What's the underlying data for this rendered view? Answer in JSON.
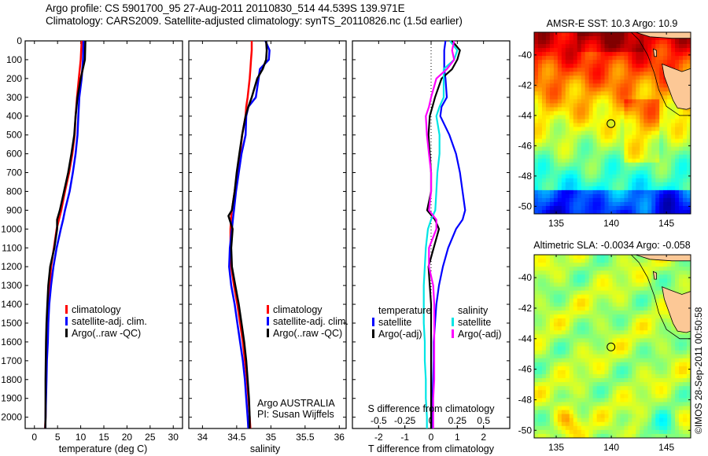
{
  "header": {
    "line1": "Argo profile: CS 5901700_95 27-Aug-2011 20110830_514 44.539S 139.971E",
    "line2": "Climatology: CARS2009. Satellite-adjusted climatology: synTS_20110826.nc (1.5d earlier)"
  },
  "colors": {
    "climatology": "#ff0000",
    "satellite": "#0000ff",
    "argo": "#000000",
    "sal_satellite": "#00e5e5",
    "sal_argo": "#ff00ff",
    "land": "#fcc896"
  },
  "chart_data": [
    {
      "type": "line",
      "name": "temperature-profile",
      "xlabel": "temperature (deg C)",
      "ylabel": "",
      "xlim": [
        -2,
        32
      ],
      "ylim": [
        2060,
        0
      ],
      "xticks": [
        0,
        5,
        10,
        15,
        20,
        25,
        30
      ],
      "yticks": [
        0,
        100,
        200,
        300,
        400,
        500,
        600,
        700,
        800,
        900,
        1000,
        1100,
        1200,
        1300,
        1400,
        1500,
        1600,
        1700,
        1800,
        1900,
        2000
      ],
      "depth": [
        0,
        100,
        200,
        300,
        400,
        500,
        600,
        700,
        800,
        900,
        950,
        1000,
        1100,
        1200,
        1300,
        1400,
        1500,
        1600,
        1700,
        1800,
        1900,
        2000,
        2060
      ],
      "series": [
        {
          "name": "climatology",
          "values": [
            10.2,
            10.0,
            9.6,
            9.2,
            8.9,
            8.7,
            8.2,
            7.5,
            6.6,
            5.8,
            5.3,
            4.8,
            4.2,
            3.6,
            3.3,
            3.0,
            2.8,
            2.7,
            2.6,
            2.5,
            2.45,
            2.4,
            2.3
          ]
        },
        {
          "name": "satellite-adj. clim.",
          "values": [
            10.6,
            10.5,
            10.2,
            9.7,
            9.5,
            9.3,
            8.9,
            8.3,
            7.6,
            6.6,
            6.2,
            5.7,
            4.8,
            4.1,
            3.6,
            3.2,
            3.0,
            2.9,
            2.7,
            2.6,
            2.5,
            2.4,
            2.35
          ]
        },
        {
          "name": "Argo(..raw -QC)",
          "values": [
            11.0,
            10.9,
            10.0,
            9.3,
            8.9,
            8.6,
            8.0,
            7.3,
            6.4,
            5.5,
            4.9,
            4.9,
            4.3,
            3.4,
            3.0,
            2.8,
            2.6,
            2.5,
            2.45,
            2.4,
            2.4,
            2.4,
            2.35
          ]
        }
      ],
      "legend": [
        "climatology",
        "satellite-adj. clim.",
        "Argo(..raw -QC)"
      ],
      "legend_position": "center-bottom"
    },
    {
      "type": "line",
      "name": "salinity-profile",
      "xlabel": "salinity",
      "xlim": [
        33.8,
        36.1
      ],
      "ylim": [
        2060,
        0
      ],
      "xticks": [
        34,
        34.5,
        35,
        35.5,
        36
      ],
      "xtick_labels": [
        "34",
        "34.5",
        "35",
        "35.5",
        "36"
      ],
      "depth": [
        0,
        50,
        100,
        150,
        200,
        300,
        350,
        400,
        500,
        600,
        700,
        800,
        900,
        930,
        1000,
        1100,
        1200,
        1300,
        1400,
        1500,
        1600,
        1700,
        1800,
        1900,
        2000,
        2060
      ],
      "series": [
        {
          "name": "climatology",
          "values": [
            34.72,
            34.72,
            34.71,
            34.7,
            34.69,
            34.66,
            34.64,
            34.63,
            34.58,
            34.55,
            34.51,
            34.47,
            34.43,
            34.42,
            34.41,
            34.41,
            34.42,
            34.46,
            34.51,
            34.55,
            34.59,
            34.62,
            34.65,
            34.67,
            34.69,
            34.7
          ]
        },
        {
          "name": "satellite-adj. clim.",
          "values": [
            34.92,
            34.98,
            34.97,
            34.84,
            34.82,
            34.78,
            34.67,
            34.64,
            34.63,
            34.57,
            34.53,
            34.49,
            34.46,
            34.45,
            34.43,
            34.4,
            34.39,
            34.42,
            34.47,
            34.51,
            34.55,
            34.59,
            34.62,
            34.64,
            34.66,
            34.67
          ]
        },
        {
          "name": "Argo(..raw -QC)",
          "values": [
            34.93,
            34.94,
            34.93,
            34.88,
            34.8,
            34.72,
            34.67,
            34.63,
            34.58,
            34.54,
            34.5,
            34.47,
            34.43,
            34.38,
            34.44,
            34.42,
            34.43,
            34.48,
            34.53,
            34.57,
            34.61,
            34.64,
            34.66,
            34.68,
            34.69,
            34.69
          ]
        }
      ],
      "legend": [
        "climatology",
        "satellite-adj. clim.",
        "Argo(..raw -QC)"
      ],
      "legend_position": "center-bottom",
      "annotation": [
        "Argo AUSTRALIA",
        "PI: Susan Wijffels"
      ]
    },
    {
      "type": "line",
      "name": "difference-profile",
      "xlabel": "T difference from climatology",
      "xlabel_top": "S difference from climatology",
      "xlim": [
        -3,
        3
      ],
      "ylim": [
        2060,
        0
      ],
      "xticks": [
        -2,
        -1,
        0,
        1,
        2
      ],
      "secondary_xticks": [
        -0.5,
        -0.25,
        0,
        0.25,
        0.5
      ],
      "secondary_xtick_labels": [
        "-0.5",
        "-0.25",
        "0",
        "0.25",
        "0.5"
      ],
      "zero_line": "dotted",
      "depth": [
        0,
        50,
        100,
        150,
        200,
        300,
        350,
        400,
        500,
        600,
        700,
        800,
        900,
        950,
        1000,
        1100,
        1200,
        1300,
        1400,
        1500,
        1600,
        1700,
        1800,
        1900,
        2000,
        2060
      ],
      "series": [
        {
          "name": "temperature satellite",
          "group": "temperature",
          "values": [
            0.55,
            0.5,
            0.5,
            0.5,
            0.55,
            0.6,
            0.4,
            0.35,
            0.7,
            0.95,
            1.1,
            1.2,
            1.3,
            1.2,
            0.95,
            0.65,
            0.45,
            0.3,
            0.2,
            0.15,
            0.1,
            0.1,
            0.08,
            0.05,
            0.05,
            0.05
          ]
        },
        {
          "name": "temperature Argo(-adj)",
          "group": "temperature",
          "values": [
            0.8,
            1.1,
            1.0,
            0.8,
            0.4,
            0.15,
            0.05,
            -0.05,
            -0.1,
            -0.05,
            0.0,
            0.0,
            -0.15,
            0.15,
            0.3,
            0.1,
            -0.1,
            -0.05,
            0.0,
            0.0,
            0.0,
            0.0,
            0.0,
            0.0,
            0.0,
            0.0
          ]
        },
        {
          "name": "salinity satellite",
          "group": "salinity",
          "values": [
            0.18,
            0.25,
            0.22,
            0.12,
            0.12,
            0.12,
            0.08,
            0.05,
            0.08,
            0.08,
            0.06,
            0.05,
            0.04,
            0.0,
            -0.03,
            -0.05,
            -0.06,
            -0.07,
            -0.07,
            -0.07,
            -0.06,
            -0.06,
            -0.05,
            -0.05,
            -0.04,
            -0.04
          ]
        },
        {
          "name": "salinity Argo(-adj)",
          "group": "salinity",
          "values": [
            0.22,
            0.2,
            0.22,
            0.15,
            0.05,
            0.0,
            -0.02,
            -0.05,
            -0.04,
            -0.02,
            0.0,
            0.0,
            -0.02,
            0.05,
            0.05,
            -0.02,
            -0.02,
            0.02,
            0.03,
            0.03,
            0.03,
            0.03,
            0.03,
            0.02,
            0.02,
            0.02
          ]
        }
      ],
      "legend": {
        "temperature_header": "temperature",
        "salinity_header": "salinity",
        "temperature": [
          "satellite",
          "Argo(-adj)"
        ],
        "salinity": [
          "satellite",
          "Argo(-adj)"
        ]
      }
    },
    {
      "type": "heatmap",
      "name": "sst-map",
      "title": "AMSR-E SST: 10.3 Argo: 10.9",
      "xlim": [
        133,
        147.2
      ],
      "ylim": [
        -50.5,
        -38.5
      ],
      "xticks": [
        135,
        140,
        145
      ],
      "yticks": [
        -40,
        -42,
        -44,
        -46,
        -48,
        -50
      ],
      "float_position": {
        "lon": 139.971,
        "lat": -44.539
      },
      "colormap": "jet",
      "description": "Warm (orange/red) to north, green mid, blue to south; Tasmania land in top-right"
    },
    {
      "type": "heatmap",
      "name": "sla-map",
      "title": "Altimetric SLA: -0.0034 Argo: -0.058",
      "xlim": [
        133,
        147.2
      ],
      "ylim": [
        -50.5,
        -38.5
      ],
      "xticks": [
        135,
        140,
        145
      ],
      "yticks": [
        -40,
        -42,
        -44,
        -46,
        -48,
        -50
      ],
      "float_position": {
        "lon": 139.971,
        "lat": -44.539
      },
      "colormap": "jet",
      "description": "Mostly green anomalies with yellow and cyan patches"
    }
  ],
  "footer": {
    "credit": "©IMOS 28-Sep-2011 00:50:58"
  }
}
